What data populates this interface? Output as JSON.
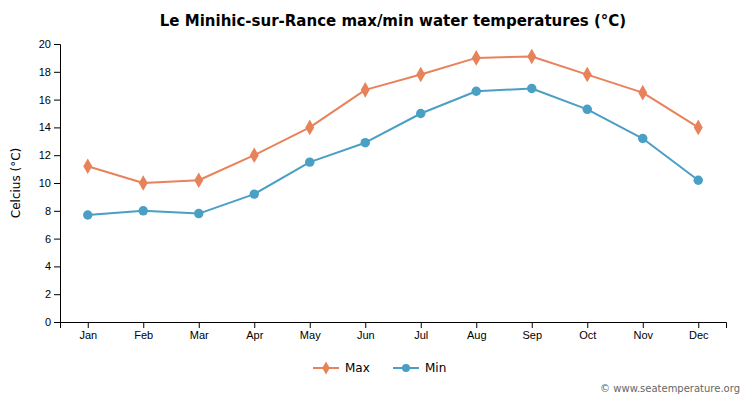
{
  "chart_data": {
    "type": "line",
    "title": "Le Minihic-sur-Rance max/min water temperatures (°C)",
    "y_label": "Celcius (°C)",
    "categories": [
      "Jan",
      "Feb",
      "Mar",
      "Apr",
      "May",
      "Jun",
      "Jul",
      "Aug",
      "Sep",
      "Oct",
      "Nov",
      "Dec"
    ],
    "series": [
      {
        "name": "Max",
        "color": "#e8825a",
        "marker": "diamond",
        "values": [
          11.2,
          10.0,
          10.2,
          12.0,
          14.0,
          16.7,
          17.8,
          19.0,
          19.1,
          17.8,
          16.5,
          14.0
        ]
      },
      {
        "name": "Min",
        "color": "#4a9fc4",
        "marker": "circle",
        "values": [
          7.7,
          8.0,
          7.8,
          9.2,
          11.5,
          12.9,
          15.0,
          16.6,
          16.8,
          15.3,
          13.2,
          10.2
        ]
      }
    ],
    "ylim": [
      0,
      20
    ],
    "yticks": [
      0,
      2,
      4,
      6,
      8,
      10,
      12,
      14,
      16,
      18,
      20
    ],
    "grid": false,
    "legend": "bottom",
    "annotations": [
      "© www.seatemperature.org"
    ]
  }
}
